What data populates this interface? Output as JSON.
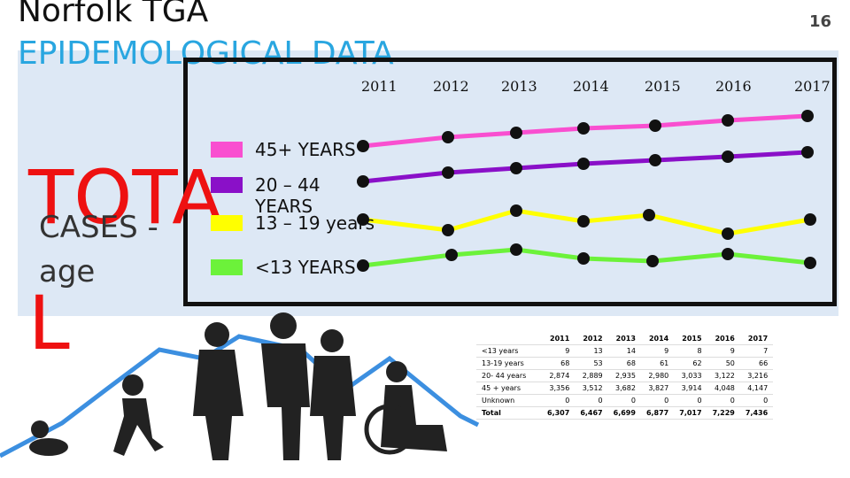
{
  "header": {
    "title": "Norfolk TGA",
    "subtitle": "EPIDEMOLOGICAL DATA",
    "page_number": "16"
  },
  "side": {
    "big": "TOTAL",
    "label": "CASES - age"
  },
  "chart": {
    "years": [
      "2011",
      "2012",
      "2013",
      "2014",
      "2015",
      "2016",
      "2017"
    ],
    "legend": [
      {
        "label": "45+ YEARS",
        "color": "#f94fd0"
      },
      {
        "label": "20 – 44 YEARS",
        "color": "#8a10c8"
      },
      {
        "label": "13 – 19 years",
        "color": "#ffff00"
      },
      {
        "label": "<13 YEARS",
        "color": "#6cf23a"
      }
    ]
  },
  "table": {
    "columns": [
      "2011",
      "2012",
      "2013",
      "2014",
      "2015",
      "2016",
      "2017"
    ],
    "rows": [
      [
        "<13 years",
        "9",
        "13",
        "14",
        "9",
        "8",
        "9",
        "7"
      ],
      [
        "13-19 years",
        "68",
        "53",
        "68",
        "61",
        "62",
        "50",
        "66"
      ],
      [
        "20- 44 years",
        "2,874",
        "2,889",
        "2,935",
        "2,980",
        "3,033",
        "3,122",
        "3,216"
      ],
      [
        "45 + years",
        "3,356",
        "3,512",
        "3,682",
        "3,827",
        "3,914",
        "4,048",
        "4,147"
      ],
      [
        "Unknown",
        "0",
        "0",
        "0",
        "0",
        "0",
        "0",
        "0"
      ],
      [
        "Total",
        "6,307",
        "6,467",
        "6,699",
        "6,877",
        "7,017",
        "7,229",
        "7,436"
      ]
    ]
  }
}
